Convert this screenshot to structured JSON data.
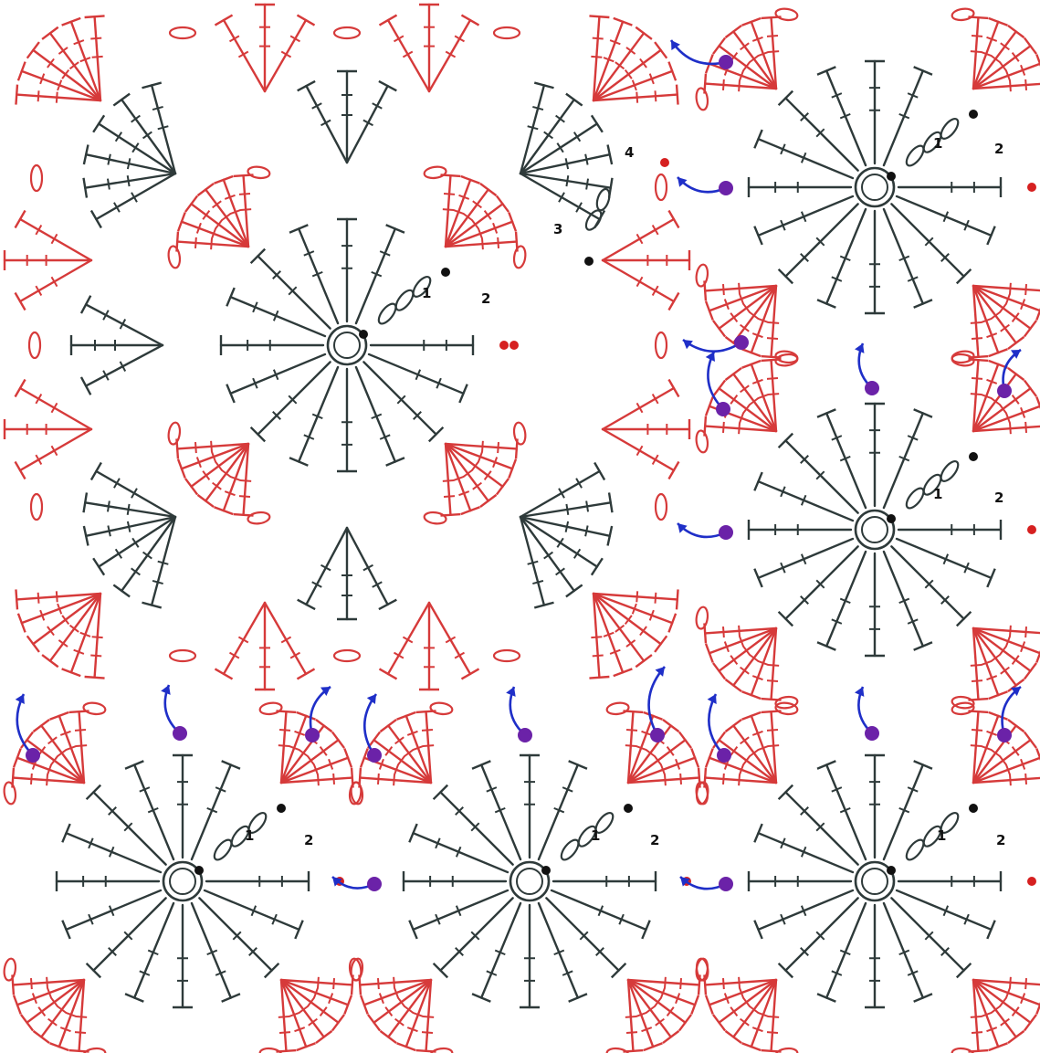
{
  "colors": {
    "dark": "#2e3a3a",
    "red": "#d63a3a",
    "join": "#6b22a8",
    "arrow": "#1f2fc8",
    "background": "#ffffff"
  },
  "motifs": [
    {
      "label_1": "1",
      "label_2": "2"
    },
    {
      "label_1": "1",
      "label_2": "2"
    },
    {
      "label_1": "1",
      "label_2": "2"
    },
    {
      "label_1": "1",
      "label_2": "2"
    },
    {
      "label_1": "1",
      "label_2": "2"
    },
    {
      "label_1": "1",
      "label_2": "2"
    }
  ],
  "round_labels": {
    "round_3": "3",
    "round_4": "4"
  },
  "join_markers": 20
}
